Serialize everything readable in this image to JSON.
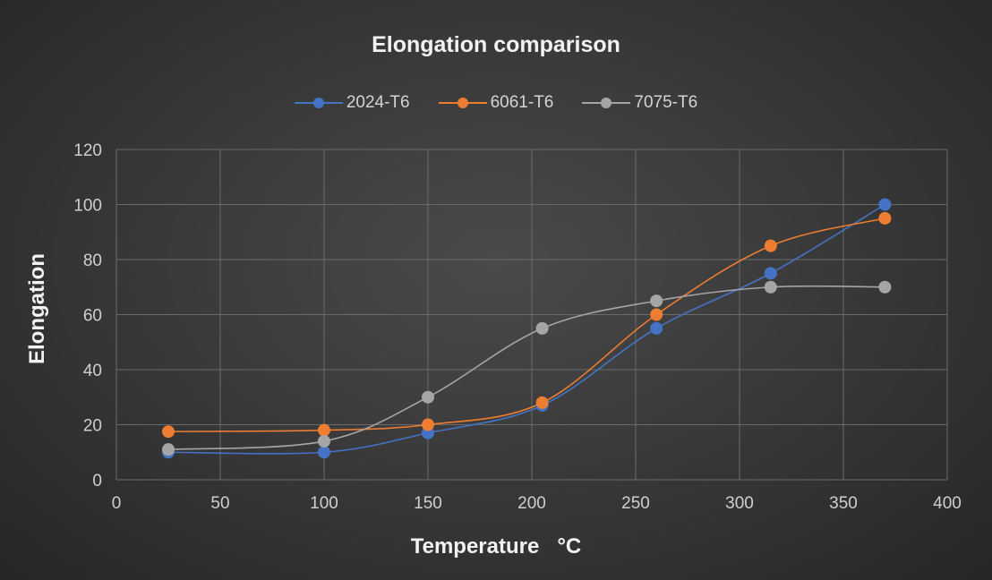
{
  "chart_data": {
    "type": "line",
    "title": "Elongation comparison",
    "xlabel": "Temperature   °C",
    "ylabel": "Elongation",
    "xlim": [
      0,
      400
    ],
    "ylim": [
      0,
      120
    ],
    "xticks": [
      0,
      50,
      100,
      150,
      200,
      250,
      300,
      350,
      400
    ],
    "yticks": [
      0,
      20,
      40,
      60,
      80,
      100,
      120
    ],
    "grid": true,
    "legend_position": "top-center",
    "smooth": true,
    "series": [
      {
        "name": "2024-T6",
        "color": "#4472c4",
        "x": [
          25,
          100,
          150,
          205,
          260,
          315,
          370
        ],
        "y": [
          10,
          10,
          17,
          27,
          55,
          75,
          100
        ]
      },
      {
        "name": "6061-T6",
        "color": "#ed7d31",
        "x": [
          25,
          100,
          150,
          205,
          260,
          315,
          370
        ],
        "y": [
          17.5,
          18,
          20,
          28,
          60,
          85,
          95
        ]
      },
      {
        "name": "7075-T6",
        "color": "#a5a5a5",
        "x": [
          25,
          100,
          150,
          205,
          260,
          315,
          370
        ],
        "y": [
          11,
          14,
          30,
          55,
          65,
          70,
          70
        ]
      }
    ]
  }
}
